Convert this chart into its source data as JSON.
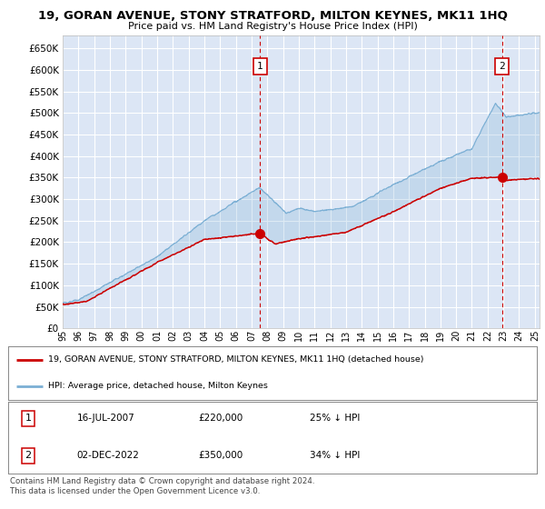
{
  "title": "19, GORAN AVENUE, STONY STRATFORD, MILTON KEYNES, MK11 1HQ",
  "subtitle": "Price paid vs. HM Land Registry's House Price Index (HPI)",
  "background_color": "#dce6f5",
  "plot_bg_color": "#dce6f5",
  "legend_label_red": "19, GORAN AVENUE, STONY STRATFORD, MILTON KEYNES, MK11 1HQ (detached house)",
  "legend_label_blue": "HPI: Average price, detached house, Milton Keynes",
  "footer": "Contains HM Land Registry data © Crown copyright and database right 2024.\nThis data is licensed under the Open Government Licence v3.0.",
  "annotation1": {
    "num": "1",
    "date": "16-JUL-2007",
    "price": "£220,000",
    "pct": "25% ↓ HPI"
  },
  "annotation2": {
    "num": "2",
    "date": "02-DEC-2022",
    "price": "£350,000",
    "pct": "34% ↓ HPI"
  },
  "ylim": [
    0,
    680000
  ],
  "yticks": [
    0,
    50000,
    100000,
    150000,
    200000,
    250000,
    300000,
    350000,
    400000,
    450000,
    500000,
    550000,
    600000,
    650000
  ],
  "red_color": "#cc0000",
  "blue_color": "#7bafd4",
  "vline_color": "#cc0000",
  "marker1_x": 2007.54,
  "marker1_y": 220000,
  "marker2_x": 2022.92,
  "marker2_y": 350000,
  "xlim_left": 1995.0,
  "xlim_right": 2025.3
}
